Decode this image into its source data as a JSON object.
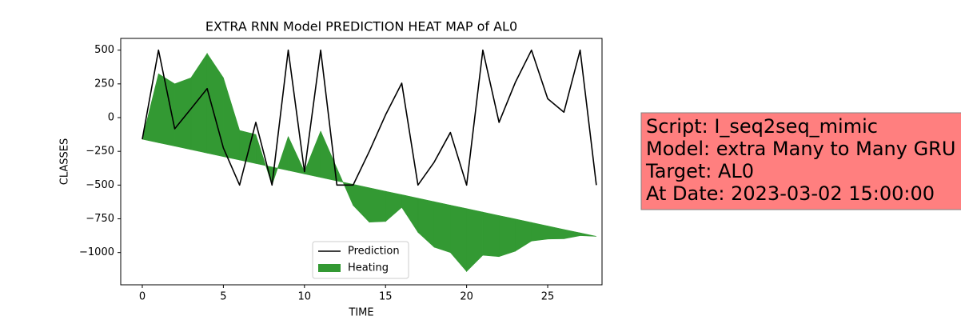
{
  "chart_data": {
    "type": "line",
    "title": "EXTRA RNN Model PREDICTION HEAT MAP of AL0",
    "xlabel": "TIME",
    "ylabel": "CLASSES",
    "x": [
      0,
      1,
      2,
      3,
      4,
      5,
      6,
      7,
      8,
      9,
      10,
      11,
      12,
      13,
      14,
      15,
      16,
      17,
      18,
      19,
      20,
      21,
      22,
      23,
      24,
      25,
      26,
      27,
      28
    ],
    "series": [
      {
        "name": "Prediction",
        "type": "line",
        "color": "#000000",
        "values": [
          -160,
          500,
          -83,
          65,
          215,
          -225,
          -500,
          -35,
          -500,
          500,
          -400,
          500,
          -500,
          -500,
          -250,
          20,
          255,
          -500,
          -330,
          -110,
          -500,
          500,
          -35,
          260,
          500,
          140,
          40,
          500,
          -500
        ]
      },
      {
        "name": "Heating",
        "type": "area",
        "color": "#339933",
        "values": [
          -160,
          325,
          250,
          295,
          475,
          295,
          -95,
          -125,
          -500,
          -140,
          -400,
          -100,
          -375,
          -650,
          -775,
          -770,
          -665,
          -850,
          -960,
          -1000,
          -1140,
          -1020,
          -1030,
          -990,
          -915,
          -900,
          -898,
          -875,
          -880
        ],
        "base": [
          -160,
          -186,
          -211,
          -237,
          -263,
          -289,
          -314,
          -340,
          -366,
          -391,
          -417,
          -443,
          -469,
          -494,
          -520,
          -546,
          -571,
          -597,
          -623,
          -649,
          -674,
          -700,
          -726,
          -751,
          -777,
          -803,
          -829,
          -854,
          -880
        ]
      }
    ],
    "xlim": [
      -1.33,
      28.35
    ],
    "xticks": [
      0,
      5,
      10,
      15,
      20,
      25
    ],
    "ylim": [
      -1239,
      587
    ],
    "yticks": [
      500,
      250,
      0,
      {
        "value": -250,
        "label": "−250"
      },
      {
        "value": -500,
        "label": "−500"
      },
      {
        "value": -750,
        "label": "−750"
      },
      {
        "value": -1000,
        "label": "−1000"
      }
    ],
    "legend": "lower center",
    "annotation": {
      "lines": [
        "Script: I_seq2seq_mimic",
        "Model: extra Many to Many GRU",
        "Target: AL0",
        "At Date: 2023-03-02 15:00:00"
      ],
      "color": "#ff7f7f"
    }
  }
}
